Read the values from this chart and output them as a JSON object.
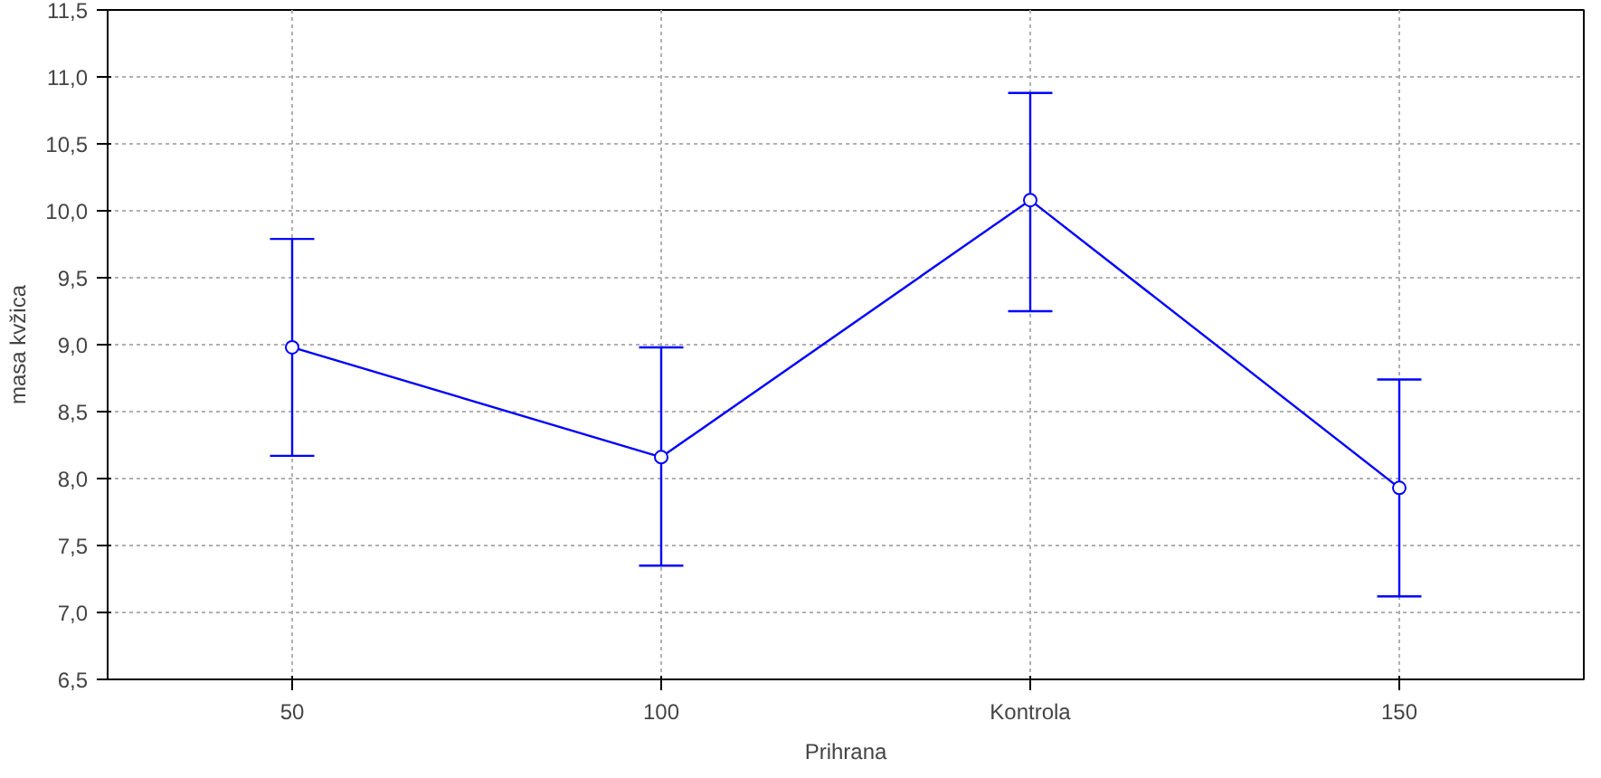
{
  "chart_data": {
    "type": "line",
    "xlabel": "Prihrana",
    "ylabel": "masa kvžica",
    "categories": [
      "50",
      "100",
      "Kontrola",
      "150"
    ],
    "series": [
      {
        "color": "#0000ff",
        "values": [
          8.98,
          8.16,
          10.08,
          7.93
        ],
        "errors": [
          [
            8.17,
            9.79
          ],
          [
            7.35,
            8.98
          ],
          [
            9.25,
            10.88
          ],
          [
            7.12,
            8.74
          ]
        ]
      }
    ],
    "ylim": [
      6.5,
      11.5
    ],
    "yticks": [
      {
        "value": 6.5,
        "label": "6,5"
      },
      {
        "value": 7.0,
        "label": "7,0"
      },
      {
        "value": 7.5,
        "label": "7,5"
      },
      {
        "value": 8.0,
        "label": "8,0"
      },
      {
        "value": 8.5,
        "label": "8,5"
      },
      {
        "value": 9.0,
        "label": "9,0"
      },
      {
        "value": 9.5,
        "label": "9,5"
      },
      {
        "value": 10.0,
        "label": "10,0"
      },
      {
        "value": 10.5,
        "label": "10,5"
      },
      {
        "value": 11.0,
        "label": "11,0"
      },
      {
        "value": 11.5,
        "label": "11,5"
      }
    ],
    "grid": true,
    "marker": "circle",
    "line_style": "solid"
  }
}
